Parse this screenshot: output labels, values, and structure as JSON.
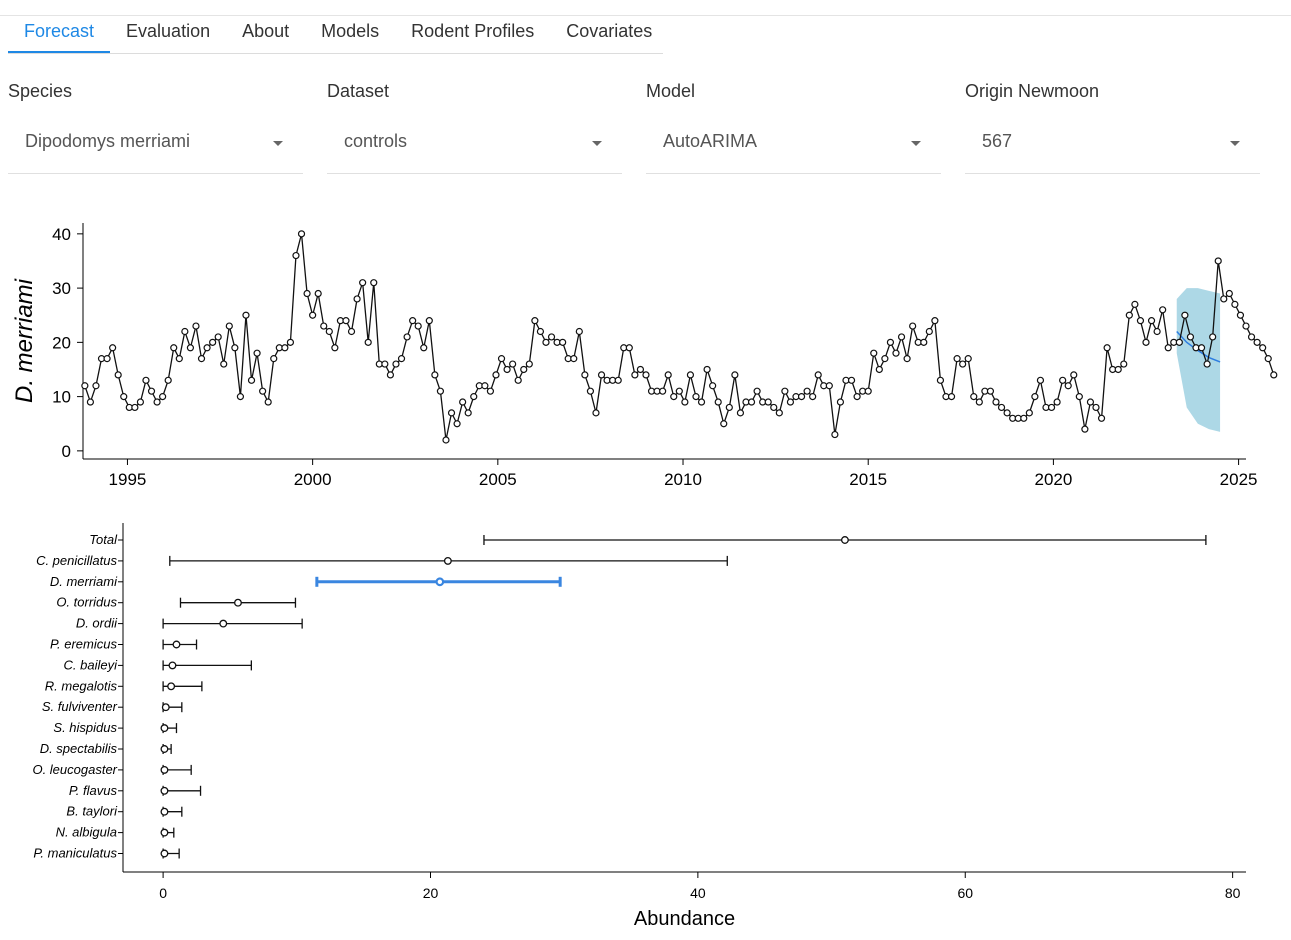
{
  "tabs": [
    {
      "label": "Forecast",
      "active": true
    },
    {
      "label": "Evaluation",
      "active": false
    },
    {
      "label": "About",
      "active": false
    },
    {
      "label": "Models",
      "active": false
    },
    {
      "label": "Rodent Profiles",
      "active": false
    },
    {
      "label": "Covariates",
      "active": false
    }
  ],
  "selectors": {
    "species": {
      "label": "Species",
      "value": "Dipodomys merriami"
    },
    "dataset": {
      "label": "Dataset",
      "value": "controls"
    },
    "model": {
      "label": "Model",
      "value": "AutoARIMA"
    },
    "origin": {
      "label": "Origin Newmoon",
      "value": "567"
    }
  },
  "colors": {
    "accent": "#1e88e5",
    "band": "#add8e6",
    "forecast_line": "#2e7de0",
    "highlight": "#3a86e0"
  },
  "chart_data": [
    {
      "type": "line",
      "ylabel": "D. merriami",
      "xlabel": "",
      "xlim": [
        1993.8,
        2025.2
      ],
      "ylim": [
        -1.5,
        42
      ],
      "xticks": [
        1995,
        2000,
        2005,
        2010,
        2015,
        2020,
        2025
      ],
      "yticks": [
        0,
        10,
        20,
        30,
        40
      ],
      "series": [
        {
          "values": [
            [
              1993.85,
              12
            ],
            [
              1994.0,
              9
            ],
            [
              1994.15,
              12
            ],
            [
              1994.3,
              17
            ],
            [
              1994.45,
              17
            ],
            [
              1994.6,
              19
            ],
            [
              1994.75,
              14
            ],
            [
              1994.9,
              10
            ],
            [
              1995.05,
              8
            ],
            [
              1995.2,
              8
            ],
            [
              1995.35,
              9
            ],
            [
              1995.5,
              13
            ],
            [
              1995.65,
              11
            ],
            [
              1995.8,
              9
            ],
            [
              1995.95,
              10
            ],
            [
              1996.1,
              13
            ],
            [
              1996.25,
              19
            ],
            [
              1996.4,
              17
            ],
            [
              1996.55,
              22
            ],
            [
              1996.7,
              19
            ],
            [
              1996.85,
              23
            ],
            [
              1997.0,
              17
            ],
            [
              1997.15,
              19
            ],
            [
              1997.3,
              20
            ],
            [
              1997.45,
              21
            ],
            [
              1997.6,
              16
            ],
            [
              1997.75,
              23
            ],
            [
              1997.9,
              19
            ],
            [
              1998.05,
              10
            ],
            [
              1998.2,
              25
            ],
            [
              1998.35,
              13
            ],
            [
              1998.5,
              18
            ],
            [
              1998.65,
              11
            ],
            [
              1998.8,
              9
            ],
            [
              1998.95,
              17
            ],
            [
              1999.1,
              19
            ],
            [
              1999.25,
              19
            ],
            [
              1999.4,
              20
            ],
            [
              1999.55,
              36
            ],
            [
              1999.7,
              40
            ],
            [
              1999.85,
              29
            ],
            [
              2000.0,
              25
            ],
            [
              2000.15,
              29
            ],
            [
              2000.3,
              23
            ],
            [
              2000.45,
              22
            ],
            [
              2000.6,
              19
            ],
            [
              2000.75,
              24
            ],
            [
              2000.9,
              24
            ],
            [
              2001.05,
              22
            ],
            [
              2001.2,
              28
            ],
            [
              2001.35,
              31
            ],
            [
              2001.5,
              20
            ],
            [
              2001.65,
              31
            ],
            [
              2001.8,
              16
            ],
            [
              2001.95,
              16
            ],
            [
              2002.1,
              14
            ],
            [
              2002.25,
              16
            ],
            [
              2002.4,
              17
            ],
            [
              2002.55,
              21
            ],
            [
              2002.7,
              24
            ],
            [
              2002.85,
              23
            ],
            [
              2003.0,
              19
            ],
            [
              2003.15,
              24
            ],
            [
              2003.3,
              14
            ],
            [
              2003.45,
              11
            ],
            [
              2003.6,
              2
            ],
            [
              2003.75,
              7
            ],
            [
              2003.9,
              5
            ],
            [
              2004.05,
              9
            ],
            [
              2004.2,
              7
            ],
            [
              2004.35,
              10
            ],
            [
              2004.5,
              12
            ],
            [
              2004.65,
              12
            ],
            [
              2004.8,
              11
            ],
            [
              2004.95,
              14
            ],
            [
              2005.1,
              17
            ],
            [
              2005.25,
              15
            ],
            [
              2005.4,
              16
            ],
            [
              2005.55,
              13
            ],
            [
              2005.7,
              15
            ],
            [
              2005.85,
              16
            ],
            [
              2006.0,
              24
            ],
            [
              2006.15,
              22
            ],
            [
              2006.3,
              20
            ],
            [
              2006.45,
              21
            ],
            [
              2006.6,
              20
            ],
            [
              2006.75,
              20
            ],
            [
              2006.9,
              17
            ],
            [
              2007.05,
              17
            ],
            [
              2007.2,
              22
            ],
            [
              2007.35,
              14
            ],
            [
              2007.5,
              11
            ],
            [
              2007.65,
              7
            ],
            [
              2007.8,
              14
            ],
            [
              2007.95,
              13
            ],
            [
              2008.1,
              13
            ],
            [
              2008.25,
              13
            ],
            [
              2008.4,
              19
            ],
            [
              2008.55,
              19
            ],
            [
              2008.7,
              14
            ],
            [
              2008.85,
              15
            ],
            [
              2009.0,
              14
            ],
            [
              2009.15,
              11
            ],
            [
              2009.3,
              11
            ],
            [
              2009.45,
              11
            ],
            [
              2009.6,
              14
            ],
            [
              2009.75,
              10
            ],
            [
              2009.9,
              11
            ],
            [
              2010.05,
              9
            ],
            [
              2010.2,
              14
            ],
            [
              2010.35,
              10
            ],
            [
              2010.5,
              9
            ],
            [
              2010.65,
              15
            ],
            [
              2010.8,
              12
            ],
            [
              2010.95,
              9
            ],
            [
              2011.1,
              5
            ],
            [
              2011.25,
              8
            ],
            [
              2011.4,
              14
            ],
            [
              2011.55,
              7
            ],
            [
              2011.7,
              9
            ],
            [
              2011.85,
              9
            ],
            [
              2012.0,
              11
            ],
            [
              2012.15,
              9
            ],
            [
              2012.3,
              9
            ],
            [
              2012.45,
              8
            ],
            [
              2012.6,
              7
            ],
            [
              2012.75,
              11
            ],
            [
              2012.9,
              9
            ],
            [
              2013.05,
              10
            ],
            [
              2013.2,
              10
            ],
            [
              2013.35,
              11
            ],
            [
              2013.5,
              10
            ],
            [
              2013.65,
              14
            ],
            [
              2013.8,
              12
            ],
            [
              2013.95,
              12
            ],
            [
              2014.1,
              3
            ],
            [
              2014.25,
              9
            ],
            [
              2014.4,
              13
            ],
            [
              2014.55,
              13
            ],
            [
              2014.7,
              10
            ],
            [
              2014.85,
              11
            ],
            [
              2015.0,
              11
            ],
            [
              2015.15,
              18
            ],
            [
              2015.3,
              15
            ],
            [
              2015.45,
              17
            ],
            [
              2015.6,
              20
            ],
            [
              2015.75,
              18
            ],
            [
              2015.9,
              21
            ],
            [
              2016.05,
              17
            ],
            [
              2016.2,
              23
            ],
            [
              2016.35,
              20
            ],
            [
              2016.5,
              20
            ],
            [
              2016.65,
              22
            ],
            [
              2016.8,
              24
            ],
            [
              2016.95,
              13
            ],
            [
              2017.1,
              10
            ],
            [
              2017.25,
              10
            ],
            [
              2017.4,
              17
            ],
            [
              2017.55,
              16
            ],
            [
              2017.7,
              17
            ],
            [
              2017.85,
              10
            ],
            [
              2018.0,
              9
            ],
            [
              2018.15,
              11
            ],
            [
              2018.3,
              11
            ],
            [
              2018.45,
              9
            ],
            [
              2018.6,
              8
            ],
            [
              2018.75,
              7
            ],
            [
              2018.9,
              6
            ],
            [
              2019.05,
              6
            ],
            [
              2019.2,
              6
            ],
            [
              2019.35,
              7
            ],
            [
              2019.5,
              10
            ],
            [
              2019.65,
              13
            ],
            [
              2019.8,
              8
            ],
            [
              2019.95,
              8
            ],
            [
              2020.1,
              9
            ],
            [
              2020.25,
              13
            ],
            [
              2020.4,
              12
            ],
            [
              2020.55,
              14
            ],
            [
              2020.7,
              10
            ],
            [
              2020.85,
              4
            ],
            [
              2021.0,
              9
            ],
            [
              2021.15,
              8
            ],
            [
              2021.3,
              6
            ],
            [
              2021.45,
              19
            ],
            [
              2021.6,
              15
            ],
            [
              2021.75,
              15
            ],
            [
              2021.9,
              16
            ],
            [
              2022.05,
              25
            ],
            [
              2022.2,
              27
            ],
            [
              2022.35,
              24
            ],
            [
              2022.5,
              20
            ],
            [
              2022.65,
              24
            ],
            [
              2022.8,
              22
            ],
            [
              2022.95,
              26
            ],
            [
              2023.1,
              19
            ],
            [
              2023.25,
              20
            ],
            [
              2023.4,
              20
            ],
            [
              2023.55,
              25
            ],
            [
              2023.7,
              21
            ],
            [
              2023.85,
              19
            ],
            [
              2024.0,
              19
            ],
            [
              2024.15,
              16
            ],
            [
              2024.3,
              21
            ],
            [
              2024.45,
              35
            ],
            [
              2024.6,
              28
            ],
            [
              2024.75,
              29
            ],
            [
              2024.9,
              27
            ],
            [
              2025.05,
              25
            ],
            [
              2025.2,
              23
            ],
            [
              2025.35,
              21
            ],
            [
              2025.5,
              20
            ],
            [
              2025.65,
              19
            ],
            [
              2025.8,
              17
            ],
            [
              2025.95,
              14
            ]
          ]
        }
      ],
      "forecast": {
        "mean": [
          [
            2023.33,
            22
          ],
          [
            2023.6,
            20
          ],
          [
            2023.9,
            18.5
          ],
          [
            2024.2,
            17.2
          ],
          [
            2024.5,
            16.4
          ]
        ],
        "lower": [
          [
            2023.33,
            18
          ],
          [
            2023.6,
            8
          ],
          [
            2023.9,
            5
          ],
          [
            2024.2,
            4
          ],
          [
            2024.5,
            3.5
          ]
        ],
        "upper": [
          [
            2023.33,
            28
          ],
          [
            2023.6,
            30
          ],
          [
            2023.9,
            30
          ],
          [
            2024.2,
            29.5
          ],
          [
            2024.5,
            29
          ]
        ]
      }
    },
    {
      "type": "interval",
      "xlabel": "Abundance",
      "xlim": [
        -3,
        81
      ],
      "xticks": [
        0,
        20,
        40,
        60,
        80
      ],
      "categories": [
        "Total",
        "C. penicillatus",
        "D. merriami",
        "O. torridus",
        "D. ordii",
        "P. eremicus",
        "C. baileyi",
        "R. megalotis",
        "S. fulviventer",
        "S. hispidus",
        "D. spectabilis",
        "O. leucogaster",
        "P. flavus",
        "B. taylori",
        "N. albigula",
        "P. maniculatus"
      ],
      "means": [
        51,
        21.3,
        20.7,
        5.6,
        4.5,
        1.0,
        0.7,
        0.6,
        0.2,
        0.1,
        0.1,
        0.1,
        0.1,
        0.1,
        0.1,
        0.1
      ],
      "lower": [
        24,
        0.5,
        11.5,
        1.3,
        0,
        0,
        0,
        0,
        0,
        0,
        0,
        0,
        0,
        0,
        0,
        0
      ],
      "upper": [
        78,
        42.2,
        29.7,
        9.9,
        10.4,
        2.5,
        6.6,
        2.9,
        1.4,
        1.0,
        0.6,
        2.1,
        2.8,
        1.4,
        0.8,
        1.2
      ],
      "highlight": "D. merriami"
    }
  ]
}
